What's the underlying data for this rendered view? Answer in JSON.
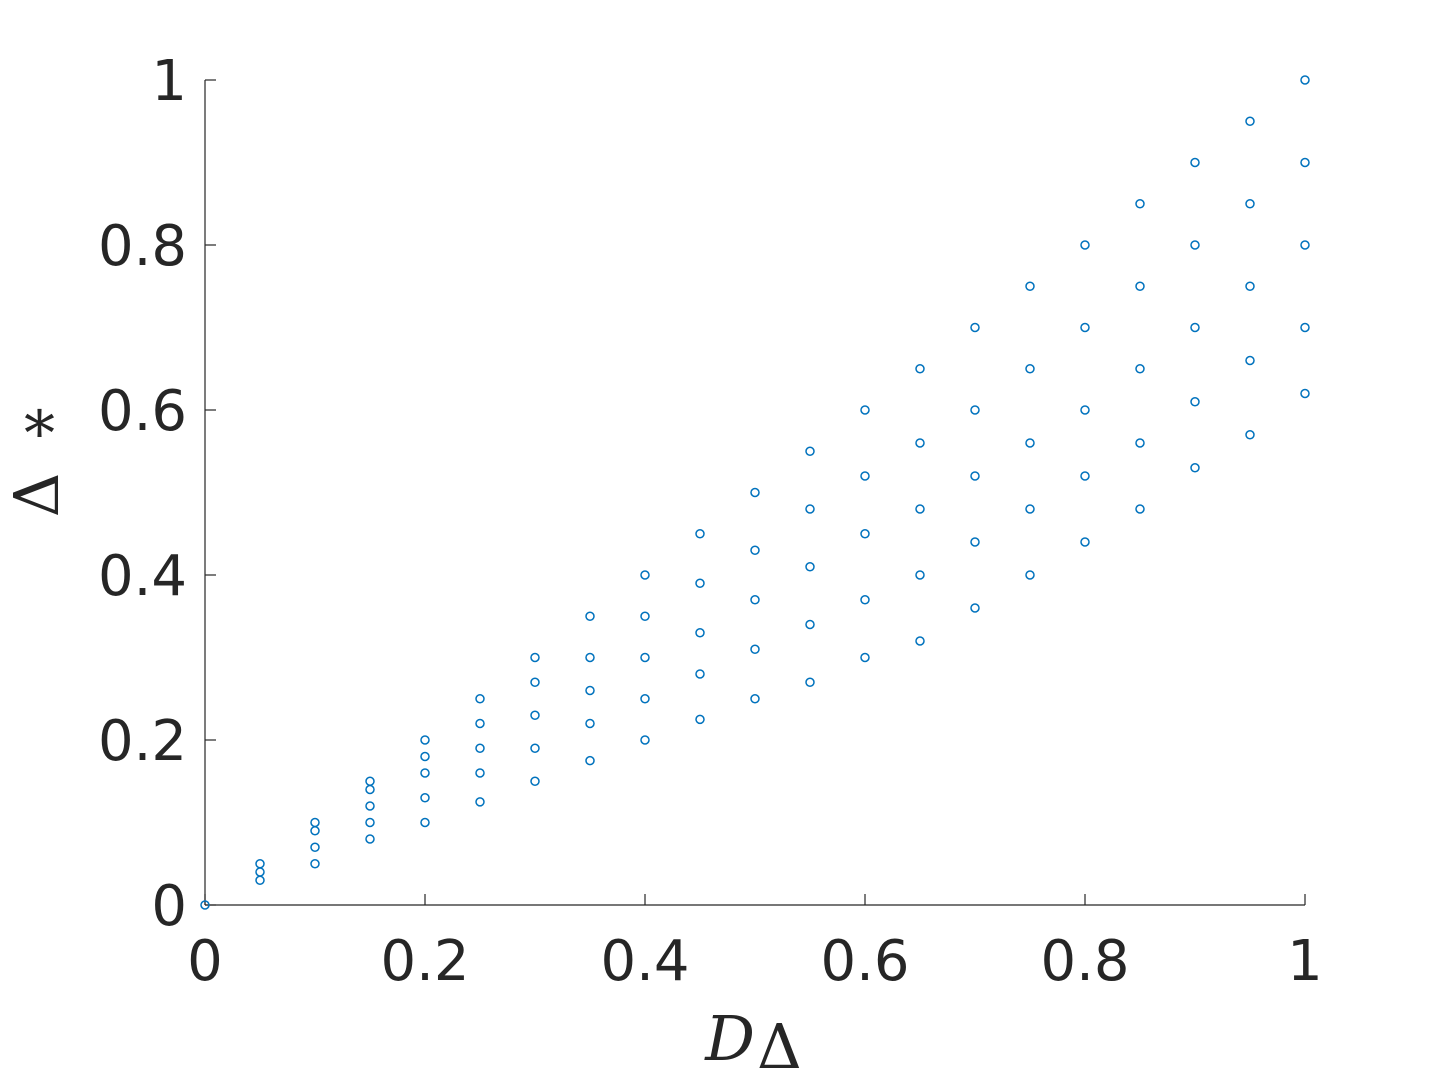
{
  "chart_data": {
    "type": "scatter",
    "x_label": "D",
    "x_label_sub": "Δ",
    "y_label": "Δ",
    "y_label_sup": "*",
    "color": "#0072bd",
    "xlim": [
      0,
      1
    ],
    "ylim": [
      0,
      1
    ],
    "xticks": [
      0,
      0.2,
      0.4,
      0.6,
      0.8,
      1
    ],
    "yticks": [
      0,
      0.2,
      0.4,
      0.6,
      0.8,
      1
    ],
    "x": [
      0,
      0.05,
      0.05,
      0.05,
      0.1,
      0.1,
      0.1,
      0.1,
      0.15,
      0.15,
      0.15,
      0.15,
      0.15,
      0.2,
      0.2,
      0.2,
      0.2,
      0.2,
      0.25,
      0.25,
      0.25,
      0.25,
      0.25,
      0.3,
      0.3,
      0.3,
      0.3,
      0.3,
      0.35,
      0.35,
      0.35,
      0.35,
      0.35,
      0.4,
      0.4,
      0.4,
      0.4,
      0.4,
      0.45,
      0.45,
      0.45,
      0.45,
      0.45,
      0.5,
      0.5,
      0.5,
      0.5,
      0.5,
      0.55,
      0.55,
      0.55,
      0.55,
      0.55,
      0.6,
      0.6,
      0.6,
      0.6,
      0.6,
      0.65,
      0.65,
      0.65,
      0.65,
      0.65,
      0.7,
      0.7,
      0.7,
      0.7,
      0.7,
      0.75,
      0.75,
      0.75,
      0.75,
      0.75,
      0.8,
      0.8,
      0.8,
      0.8,
      0.8,
      0.85,
      0.85,
      0.85,
      0.85,
      0.85,
      0.9,
      0.9,
      0.9,
      0.9,
      0.9,
      0.95,
      0.95,
      0.95,
      0.95,
      0.95,
      1,
      1,
      1,
      1,
      1
    ],
    "y": [
      0,
      0.03,
      0.04,
      0.05,
      0.05,
      0.07,
      0.09,
      0.1,
      0.08,
      0.1,
      0.12,
      0.14,
      0.15,
      0.1,
      0.13,
      0.16,
      0.18,
      0.2,
      0.125,
      0.16,
      0.19,
      0.22,
      0.25,
      0.15,
      0.19,
      0.23,
      0.27,
      0.3,
      0.175,
      0.22,
      0.26,
      0.3,
      0.35,
      0.2,
      0.25,
      0.3,
      0.35,
      0.4,
      0.225,
      0.28,
      0.33,
      0.39,
      0.45,
      0.25,
      0.31,
      0.37,
      0.43,
      0.5,
      0.27,
      0.34,
      0.41,
      0.48,
      0.55,
      0.3,
      0.37,
      0.45,
      0.52,
      0.6,
      0.32,
      0.4,
      0.48,
      0.56,
      0.65,
      0.36,
      0.44,
      0.52,
      0.6,
      0.7,
      0.4,
      0.48,
      0.56,
      0.65,
      0.75,
      0.44,
      0.52,
      0.6,
      0.7,
      0.8,
      0.48,
      0.56,
      0.65,
      0.75,
      0.85,
      0.53,
      0.61,
      0.7,
      0.8,
      0.9,
      0.57,
      0.66,
      0.75,
      0.85,
      0.95,
      0.62,
      0.7,
      0.8,
      0.9,
      1
    ]
  }
}
